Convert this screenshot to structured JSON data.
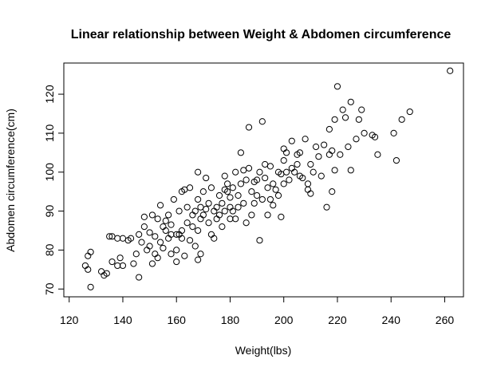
{
  "chart_data": {
    "type": "scatter",
    "title": "Linear relationship between Weight & Abdomen circumference",
    "xlabel": "Weight(lbs)",
    "ylabel": "Abdomen circumference(cm)",
    "xlim": [
      118,
      267
    ],
    "ylim": [
      68,
      128
    ],
    "xticks": [
      120,
      140,
      160,
      180,
      200,
      220,
      240,
      260
    ],
    "yticks": [
      70,
      80,
      90,
      100,
      110,
      120
    ],
    "grid": false,
    "legend": "none",
    "marker": "open-circle",
    "colors": {
      "points": "#000000",
      "frame": "#000000",
      "background": "#ffffff"
    },
    "points": [
      [
        126,
        76
      ],
      [
        127,
        75
      ],
      [
        127,
        78.5
      ],
      [
        128,
        79.5
      ],
      [
        128,
        70.5
      ],
      [
        132,
        74.5
      ],
      [
        133,
        73.5
      ],
      [
        134,
        74
      ],
      [
        135,
        83.5
      ],
      [
        136,
        83.5
      ],
      [
        136,
        77
      ],
      [
        138,
        76
      ],
      [
        138,
        83
      ],
      [
        139,
        78
      ],
      [
        140,
        83
      ],
      [
        140,
        76
      ],
      [
        142,
        82.5
      ],
      [
        143,
        83
      ],
      [
        144,
        76.5
      ],
      [
        145,
        79
      ],
      [
        146,
        84
      ],
      [
        146,
        73
      ],
      [
        147,
        82
      ],
      [
        148,
        86
      ],
      [
        148,
        88.5
      ],
      [
        149,
        80
      ],
      [
        150,
        81
      ],
      [
        150,
        84.5
      ],
      [
        151,
        89
      ],
      [
        151,
        76.5
      ],
      [
        152,
        83.5
      ],
      [
        152,
        79
      ],
      [
        153,
        78
      ],
      [
        153,
        88
      ],
      [
        154,
        82
      ],
      [
        154,
        91.5
      ],
      [
        155,
        86
      ],
      [
        155,
        80.5
      ],
      [
        156,
        85
      ],
      [
        156,
        87.5
      ],
      [
        157,
        89
      ],
      [
        157,
        83
      ],
      [
        158,
        84
      ],
      [
        158,
        79
      ],
      [
        158,
        86.5
      ],
      [
        159,
        93
      ],
      [
        160,
        80
      ],
      [
        160,
        84
      ],
      [
        160,
        77
      ],
      [
        161,
        84
      ],
      [
        161,
        90
      ],
      [
        162,
        95
      ],
      [
        162,
        83
      ],
      [
        162,
        85
      ],
      [
        163,
        95.5
      ],
      [
        163,
        78.5
      ],
      [
        164,
        87
      ],
      [
        164,
        91
      ],
      [
        165,
        96
      ],
      [
        165,
        82.5
      ],
      [
        166,
        86
      ],
      [
        166,
        89
      ],
      [
        167,
        90
      ],
      [
        167,
        81
      ],
      [
        168,
        93
      ],
      [
        168,
        85
      ],
      [
        168,
        100
      ],
      [
        168,
        77.5
      ],
      [
        169,
        88
      ],
      [
        169,
        91
      ],
      [
        169,
        79
      ],
      [
        170,
        89
      ],
      [
        170,
        95
      ],
      [
        171,
        90.5
      ],
      [
        171,
        98.5
      ],
      [
        172,
        87
      ],
      [
        172,
        92
      ],
      [
        173,
        84
      ],
      [
        173,
        96
      ],
      [
        174,
        90
      ],
      [
        174,
        83
      ],
      [
        175,
        91
      ],
      [
        175,
        88
      ],
      [
        176,
        94
      ],
      [
        176,
        89
      ],
      [
        177,
        92
      ],
      [
        177,
        86
      ],
      [
        178,
        95.5
      ],
      [
        178,
        99
      ],
      [
        178,
        90
      ],
      [
        179,
        95
      ],
      [
        179,
        97
      ],
      [
        180,
        91
      ],
      [
        180,
        88
      ],
      [
        180,
        93.5
      ],
      [
        181,
        96
      ],
      [
        181,
        90
      ],
      [
        182,
        100
      ],
      [
        182,
        88
      ],
      [
        183,
        94
      ],
      [
        183,
        91
      ],
      [
        184,
        97
      ],
      [
        184,
        105
      ],
      [
        185,
        92
      ],
      [
        185,
        100.5
      ],
      [
        186,
        98
      ],
      [
        186,
        87
      ],
      [
        187,
        101
      ],
      [
        187,
        111.5
      ],
      [
        188,
        89
      ],
      [
        188,
        95
      ],
      [
        189,
        92
      ],
      [
        189,
        97.5
      ],
      [
        190,
        98
      ],
      [
        190,
        94
      ],
      [
        191,
        100
      ],
      [
        191,
        82.5
      ],
      [
        192,
        113
      ],
      [
        192,
        93
      ],
      [
        193,
        98.5
      ],
      [
        193,
        102
      ],
      [
        194,
        89
      ],
      [
        194,
        96
      ],
      [
        195,
        101.5
      ],
      [
        195,
        93
      ],
      [
        196,
        97
      ],
      [
        196,
        91.5
      ],
      [
        197,
        95.5
      ],
      [
        198,
        100
      ],
      [
        198,
        94
      ],
      [
        199,
        99.5
      ],
      [
        199,
        88.5
      ],
      [
        200,
        97
      ],
      [
        200,
        103
      ],
      [
        200,
        106
      ],
      [
        201,
        100
      ],
      [
        201,
        105
      ],
      [
        202,
        98
      ],
      [
        203,
        101
      ],
      [
        203,
        108
      ],
      [
        204,
        100
      ],
      [
        205,
        104.5
      ],
      [
        205,
        102
      ],
      [
        206,
        105
      ],
      [
        206,
        99
      ],
      [
        207,
        98.5
      ],
      [
        208,
        108.5
      ],
      [
        209,
        97
      ],
      [
        209,
        95.5
      ],
      [
        210,
        94.5
      ],
      [
        210,
        102
      ],
      [
        211,
        100
      ],
      [
        212,
        106.5
      ],
      [
        213,
        104
      ],
      [
        214,
        99
      ],
      [
        215,
        107
      ],
      [
        216,
        91
      ],
      [
        217,
        111
      ],
      [
        217,
        104.5
      ],
      [
        218,
        95
      ],
      [
        218,
        105.5
      ],
      [
        219,
        100.5
      ],
      [
        219,
        113.5
      ],
      [
        220,
        122
      ],
      [
        221,
        104.5
      ],
      [
        222,
        116
      ],
      [
        223,
        114
      ],
      [
        224,
        106.5
      ],
      [
        225,
        118
      ],
      [
        225,
        100.5
      ],
      [
        227,
        108.5
      ],
      [
        228,
        113.5
      ],
      [
        229,
        116
      ],
      [
        230,
        110
      ],
      [
        233,
        109.5
      ],
      [
        234,
        109
      ],
      [
        235,
        104.5
      ],
      [
        241,
        110
      ],
      [
        242,
        103
      ],
      [
        244,
        113.5
      ],
      [
        247,
        115.5
      ],
      [
        262,
        126
      ]
    ]
  }
}
